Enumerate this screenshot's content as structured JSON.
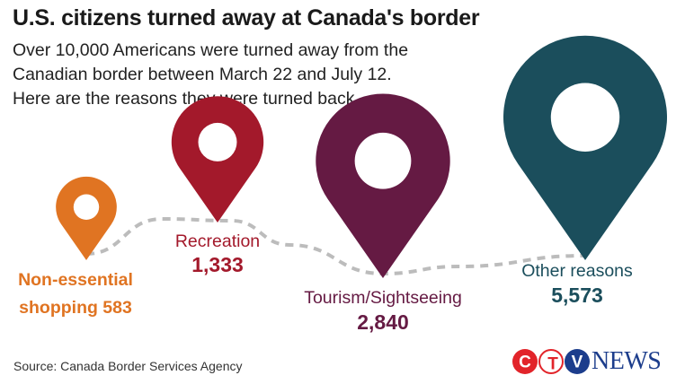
{
  "title": "U.S. citizens turned away at Canada's border",
  "subtitle": [
    "Over 10,000 Americans were turned away from the",
    "Canadian border between March 22 and July 12.",
    "Here are the reasons they were turned back"
  ],
  "source": "Source:  Canada Border Services Agency",
  "logo": {
    "letters": [
      "C",
      "T",
      "V"
    ],
    "word": "NEWS",
    "colors": {
      "red": "#e2242a",
      "blue": "#1c3d8c",
      "text": "#1c3d8c"
    }
  },
  "chart_data": {
    "type": "pictogram",
    "categories": [
      "Non-essential shopping",
      "Recreation",
      "Tourism/Sightseeing",
      "Other reasons"
    ],
    "values": [
      583,
      1333,
      2840,
      5573
    ],
    "labels": [
      [
        "Non-essential",
        "shopping 583"
      ],
      [
        "Recreation",
        "1,333"
      ],
      [
        "Tourism/Sightseeing",
        "2,840"
      ],
      [
        "Other reasons",
        "5,573"
      ]
    ],
    "colors": [
      "#e07422",
      "#a3192b",
      "#651a43",
      "#1b4e5c"
    ],
    "connector_color": "#bcbcbc",
    "icon": "map-pin-icon"
  }
}
